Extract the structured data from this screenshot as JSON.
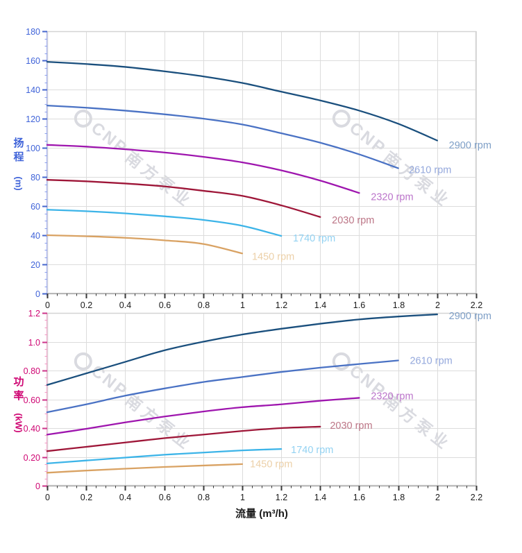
{
  "watermark": {
    "brand": "CNP",
    "brand_cn": "南方泵业"
  },
  "axes": {
    "head_axis_title": "扬程",
    "head_axis_unit": "(m)",
    "power_axis_title": "功率",
    "power_axis_unit": "(kW)",
    "flow_axis_title": "流量 (m³/h)"
  },
  "style": {
    "grid_color": "#dcdcdc",
    "plot_border_color": "#d4d4d4",
    "x_tick_label_color": "#1a1a1a",
    "x_tick_color": "#3a3a3a",
    "x_axis_line_color": "#9a9a9a",
    "background": "#ffffff",
    "watermark_color": "#babcc6"
  },
  "chart_data": [
    {
      "type": "line",
      "title": "Pump head curves",
      "xlabel": "流量 (m³/h)",
      "ylabel": "扬程 (m)",
      "xlim": [
        0,
        2.2
      ],
      "ylim": [
        0,
        180
      ],
      "x_major": 0.2,
      "x_minor": 0.05,
      "y_major": 20,
      "y_minor": 5,
      "grid": true,
      "legend_position": "curve-end-labels",
      "x_tick_labels": [
        "0",
        "0.2",
        "0.4",
        "0.6",
        "0.8",
        "1",
        "1.2",
        "1.4",
        "1.6",
        "1.8",
        "2",
        "2.2"
      ],
      "y_tick_labels": [
        "0",
        "20",
        "40",
        "60",
        "80",
        "100",
        "120",
        "140",
        "160",
        "180"
      ],
      "axis_color": "#3f63d9",
      "tick_color": "#4466cc",
      "minor_tick_color": "#8ca0ea",
      "axis_line_color": "#b3bdf2",
      "series": [
        {
          "name": "2900 rpm",
          "color": "#1a4f7d",
          "label_color": "#7d9ec6",
          "label_pos": [
            2.06,
            102
          ],
          "points": [
            [
              0,
              159
            ],
            [
              0.2,
              157.5
            ],
            [
              0.4,
              155.5
            ],
            [
              0.6,
              152.5
            ],
            [
              0.8,
              149
            ],
            [
              1,
              144.5
            ],
            [
              1.2,
              138.5
            ],
            [
              1.4,
              132.5
            ],
            [
              1.6,
              125.5
            ],
            [
              1.8,
              116.5
            ],
            [
              2,
              105
            ]
          ]
        },
        {
          "name": "2610 rpm",
          "color": "#4a72c4",
          "label_color": "#94a8dc",
          "label_pos": [
            1.855,
            85
          ],
          "points": [
            [
              0,
              129
            ],
            [
              0.2,
              127.5
            ],
            [
              0.4,
              125.5
            ],
            [
              0.6,
              123
            ],
            [
              0.8,
              120
            ],
            [
              1,
              116
            ],
            [
              1.2,
              110
            ],
            [
              1.4,
              103.5
            ],
            [
              1.6,
              95.5
            ],
            [
              1.8,
              86
            ]
          ]
        },
        {
          "name": "2320 rpm",
          "color": "#9e15ae",
          "label_color": "#bb74ca",
          "label_pos": [
            1.66,
            66.5
          ],
          "points": [
            [
              0,
              102
            ],
            [
              0.2,
              100.8
            ],
            [
              0.4,
              99
            ],
            [
              0.6,
              96.8
            ],
            [
              0.8,
              93.8
            ],
            [
              1,
              90
            ],
            [
              1.2,
              84.5
            ],
            [
              1.4,
              77.5
            ],
            [
              1.6,
              69
            ]
          ]
        },
        {
          "name": "2030 rpm",
          "color": "#9e1638",
          "label_color": "#bc7586",
          "label_pos": [
            1.46,
            50.5
          ],
          "points": [
            [
              0,
              78
            ],
            [
              0.2,
              77
            ],
            [
              0.4,
              75.5
            ],
            [
              0.6,
              73.5
            ],
            [
              0.8,
              70.5
            ],
            [
              1,
              67
            ],
            [
              1.2,
              60.5
            ],
            [
              1.4,
              52.5
            ]
          ]
        },
        {
          "name": "1740 rpm",
          "color": "#3cb4e8",
          "label_color": "#93d2f2",
          "label_pos": [
            1.26,
            38
          ],
          "points": [
            [
              0,
              57.5
            ],
            [
              0.2,
              56.5
            ],
            [
              0.4,
              55
            ],
            [
              0.6,
              53
            ],
            [
              0.8,
              50.5
            ],
            [
              1,
              46.5
            ],
            [
              1.2,
              39.5
            ]
          ]
        },
        {
          "name": "1450 rpm",
          "color": "#d9a263",
          "label_color": "#ecd0a8",
          "label_pos": [
            1.05,
            25.5
          ],
          "points": [
            [
              0,
              40
            ],
            [
              0.2,
              39.3
            ],
            [
              0.4,
              38.2
            ],
            [
              0.6,
              36.5
            ],
            [
              0.8,
              34
            ],
            [
              1,
              27.5
            ]
          ]
        }
      ]
    },
    {
      "type": "line",
      "title": "Pump power curves",
      "xlabel": "流量 (m³/h)",
      "ylabel": "功率 (kW)",
      "xlim": [
        0,
        2.2
      ],
      "ylim": [
        0,
        1.2
      ],
      "x_major": 0.2,
      "x_minor": 0.05,
      "y_major": 0.2,
      "y_minor": 0.05,
      "grid": true,
      "legend_position": "curve-end-labels",
      "x_tick_labels": [
        "0",
        "0.2",
        "0.4",
        "0.6",
        "0.8",
        "1",
        "1.2",
        "1.4",
        "1.6",
        "1.8",
        "2",
        "2.2"
      ],
      "y_tick_labels": [
        "0",
        "0.20",
        "0.40",
        "0.60",
        "0.80",
        "1.0",
        "1.2"
      ],
      "axis_color": "#cf0673",
      "tick_color": "#cc3388",
      "minor_tick_color": "#f29ac4",
      "axis_line_color": "#f2b8d4",
      "series": [
        {
          "name": "2900 rpm",
          "color": "#1a4f7d",
          "label_color": "#7d9ec6",
          "label_pos": [
            2.06,
            1.18
          ],
          "points": [
            [
              0,
              0.7
            ],
            [
              0.2,
              0.78
            ],
            [
              0.4,
              0.86
            ],
            [
              0.6,
              0.94
            ],
            [
              0.8,
              1
            ],
            [
              1,
              1.05
            ],
            [
              1.2,
              1.09
            ],
            [
              1.4,
              1.125
            ],
            [
              1.6,
              1.155
            ],
            [
              1.8,
              1.175
            ],
            [
              2,
              1.19
            ]
          ]
        },
        {
          "name": "2610 rpm",
          "color": "#4a72c4",
          "label_color": "#94a8dc",
          "label_pos": [
            1.86,
            0.87
          ],
          "points": [
            [
              0,
              0.51
            ],
            [
              0.2,
              0.565
            ],
            [
              0.4,
              0.625
            ],
            [
              0.6,
              0.675
            ],
            [
              0.8,
              0.72
            ],
            [
              1,
              0.755
            ],
            [
              1.2,
              0.79
            ],
            [
              1.4,
              0.82
            ],
            [
              1.6,
              0.845
            ],
            [
              1.8,
              0.87
            ]
          ]
        },
        {
          "name": "2320 rpm",
          "color": "#9e15ae",
          "label_color": "#bb74ca",
          "label_pos": [
            1.66,
            0.625
          ],
          "points": [
            [
              0,
              0.355
            ],
            [
              0.2,
              0.395
            ],
            [
              0.4,
              0.44
            ],
            [
              0.6,
              0.48
            ],
            [
              0.8,
              0.515
            ],
            [
              1,
              0.545
            ],
            [
              1.2,
              0.565
            ],
            [
              1.4,
              0.59
            ],
            [
              1.6,
              0.61
            ]
          ]
        },
        {
          "name": "2030 rpm",
          "color": "#9e1638",
          "label_color": "#bc7586",
          "label_pos": [
            1.45,
            0.42
          ],
          "points": [
            [
              0,
              0.24
            ],
            [
              0.2,
              0.27
            ],
            [
              0.4,
              0.3
            ],
            [
              0.6,
              0.33
            ],
            [
              0.8,
              0.355
            ],
            [
              1,
              0.38
            ],
            [
              1.2,
              0.4
            ],
            [
              1.4,
              0.41
            ]
          ]
        },
        {
          "name": "1740 rpm",
          "color": "#3cb4e8",
          "label_color": "#93d2f2",
          "label_pos": [
            1.25,
            0.25
          ],
          "points": [
            [
              0,
              0.155
            ],
            [
              0.2,
              0.175
            ],
            [
              0.4,
              0.195
            ],
            [
              0.6,
              0.215
            ],
            [
              0.8,
              0.23
            ],
            [
              1,
              0.245
            ],
            [
              1.2,
              0.255
            ]
          ]
        },
        {
          "name": "1450 rpm",
          "color": "#d9a263",
          "label_color": "#ecd0a8",
          "label_pos": [
            1.04,
            0.152
          ],
          "points": [
            [
              0,
              0.09
            ],
            [
              0.2,
              0.105
            ],
            [
              0.4,
              0.118
            ],
            [
              0.6,
              0.13
            ],
            [
              0.8,
              0.14
            ],
            [
              1,
              0.15
            ]
          ]
        }
      ]
    }
  ]
}
